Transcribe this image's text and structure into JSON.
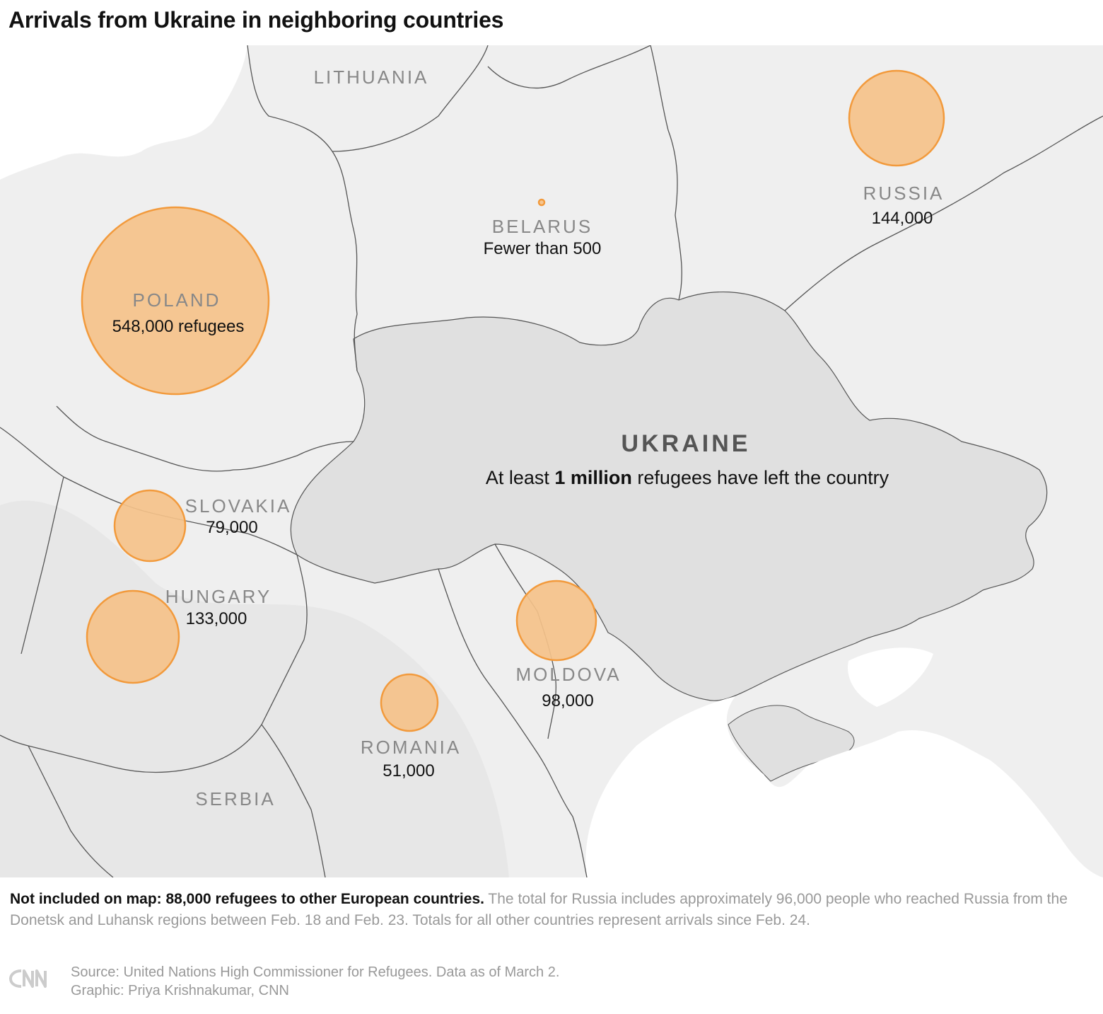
{
  "title": "Arrivals from Ukraine in neighboring countries",
  "colors": {
    "bubble_fill": "#f5c28a",
    "bubble_stroke": "#f29a3c",
    "land": "#efefef",
    "ukraine": "#e0e0e0",
    "sea": "#ffffff",
    "border": "#555555"
  },
  "countries": [
    {
      "name": "POLAND",
      "value": "548,000 refugees",
      "refugees": 548000
    },
    {
      "name": "RUSSIA",
      "value": "144,000",
      "refugees": 144000
    },
    {
      "name": "BELARUS",
      "value": "Fewer than 500",
      "refugees": 500
    },
    {
      "name": "SLOVAKIA",
      "value": "79,000",
      "refugees": 79000
    },
    {
      "name": "HUNGARY",
      "value": "133,000",
      "refugees": 133000
    },
    {
      "name": "MOLDOVA",
      "value": "98,000",
      "refugees": 98000
    },
    {
      "name": "ROMANIA",
      "value": "51,000",
      "refugees": 51000
    }
  ],
  "other_labels": {
    "lithuania": "LITHUANIA",
    "serbia": "SERBIA"
  },
  "ukraine": {
    "name": "UKRAINE",
    "note_before": "At least ",
    "note_bold": "1 million",
    "note_after": " refugees have left the country"
  },
  "footnote": {
    "bold": "Not included on map: 88,000 refugees to other European countries.",
    "text": " The total for Russia includes approximately 96,000 people who reached Russia from the Donetsk and Luhansk regions between Feb. 18 and Feb. 23. Totals for all other countries represent arrivals since Feb. 24."
  },
  "source": "Source: United Nations High Commissioner for Refugees. Data as of March 2.",
  "graphic": "Graphic: Priya Krishnakumar, CNN",
  "logo": "cnn-logo"
}
